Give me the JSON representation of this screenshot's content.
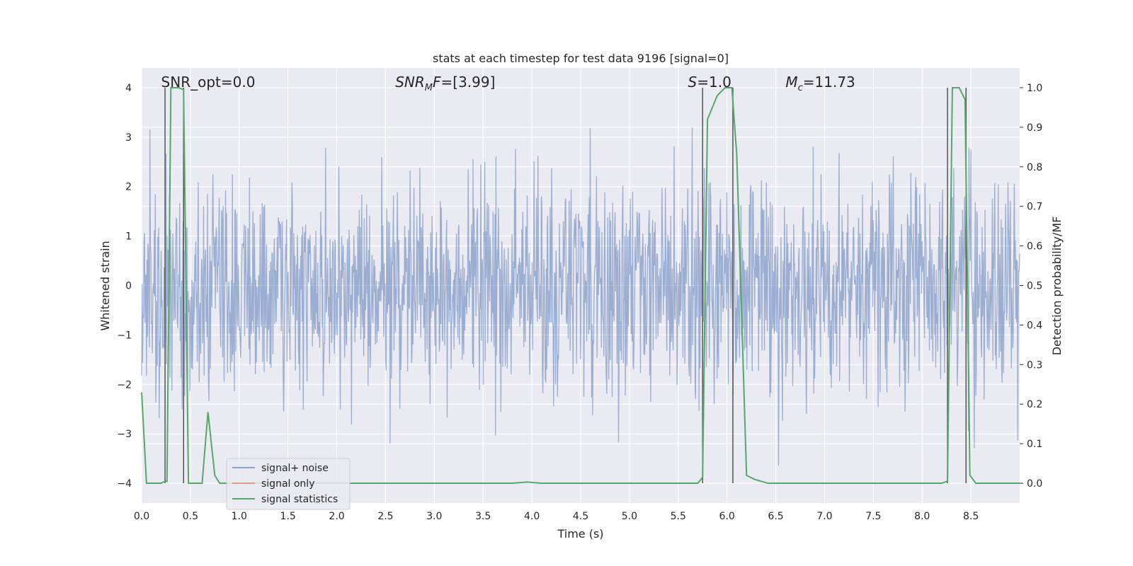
{
  "chart_data": {
    "type": "line",
    "title": "stats at each timestep for test data 9196 [signal=0]",
    "xlabel": "Time (s)",
    "ylabel": "Whitened strain",
    "y2label": "Detection probability/MF",
    "xlim": [
      0,
      9.0
    ],
    "ylim": [
      -4.4,
      4.4
    ],
    "y2lim": [
      -0.05,
      1.05
    ],
    "x_ticks": [
      "0.0",
      "0.5",
      "1.0",
      "1.5",
      "2.0",
      "2.5",
      "3.0",
      "3.5",
      "4.0",
      "4.5",
      "5.0",
      "5.5",
      "6.0",
      "6.5",
      "7.0",
      "7.5",
      "8.0",
      "8.5"
    ],
    "y_ticks": [
      "4",
      "3",
      "2",
      "1",
      "0",
      "−1",
      "−2",
      "−3",
      "−4"
    ],
    "y2_ticks": [
      "1.0",
      "0.9",
      "0.8",
      "0.7",
      "0.6",
      "0.5",
      "0.4",
      "0.3",
      "0.2",
      "0.1",
      "0.0"
    ],
    "grid": true,
    "legend_position": "lower-left",
    "annotations": [
      {
        "prefix": "SNR_opt=0.0",
        "sub": "",
        "suffix": "",
        "x": 0.2
      },
      {
        "prefix": "SNR",
        "sub": "M",
        "suffix": "F=[3.99]",
        "x": 2.6,
        "italic": true
      },
      {
        "prefix": "S",
        "sub": "",
        "suffix": "=1.0",
        "x": 5.6,
        "italic": true
      },
      {
        "prefix": "M",
        "sub": "c",
        "suffix": "=11.73",
        "x": 6.6,
        "italic": true
      }
    ],
    "series": [
      {
        "name": "signal+ noise",
        "color": "#4c72b0",
        "kind": "noise",
        "sample_count": 1800,
        "std": 1.0
      },
      {
        "name": "signal only",
        "color": "#dd8452",
        "kind": "line",
        "x": [],
        "y": []
      },
      {
        "name": "signal statistics",
        "color": "#55a868",
        "kind": "line",
        "axis": "right",
        "x": [
          0.0,
          0.05,
          0.2,
          0.24,
          0.26,
          0.3,
          0.38,
          0.43,
          0.48,
          0.62,
          0.68,
          0.75,
          0.8,
          0.9,
          1.2,
          1.8,
          2.0,
          3.0,
          3.8,
          3.95,
          4.1,
          5.0,
          5.45,
          5.7,
          5.75,
          5.8,
          5.9,
          5.98,
          6.05,
          6.1,
          6.2,
          6.28,
          6.42,
          7.0,
          8.0,
          8.2,
          8.26,
          8.31,
          8.38,
          8.44,
          8.49,
          8.55,
          9.0
        ],
        "y": [
          0.23,
          0.0,
          0.0,
          0.005,
          0.005,
          1.0,
          1.0,
          0.995,
          0.0,
          0.0,
          0.18,
          0.02,
          0.0,
          0.0,
          0.0,
          0.0,
          0.0,
          0.0,
          0.0,
          0.003,
          0.0,
          0.0,
          0.0,
          0.0,
          0.015,
          0.92,
          0.98,
          1.0,
          1.0,
          0.83,
          0.02,
          0.01,
          0.0,
          0.0,
          0.0,
          0.0,
          0.005,
          1.0,
          1.0,
          0.97,
          0.02,
          0.0,
          0.0
        ]
      }
    ],
    "vertical_lines": [
      0.24,
      0.43,
      5.75,
      6.06,
      8.26,
      8.45
    ]
  }
}
